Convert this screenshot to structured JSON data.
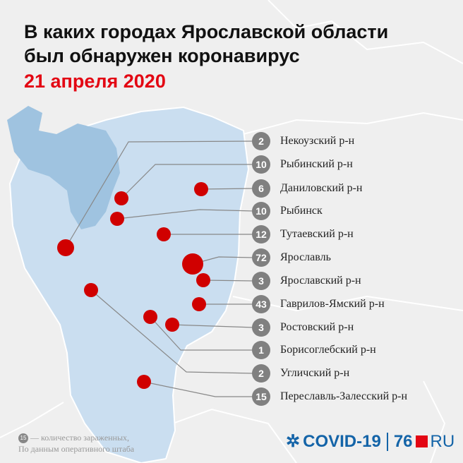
{
  "title": {
    "line1": "В каких городах Ярославской области",
    "line2": "был обнаружен коронавирус",
    "date": "21 апреля 2020"
  },
  "colors": {
    "accent": "#e30613",
    "region": "#cadef0",
    "water": "#9fc3e0",
    "badge": "#808080",
    "background": "#efefef",
    "brand": "#1464a8"
  },
  "districts": [
    {
      "name": "Некоузский р-н",
      "count": "2"
    },
    {
      "name": "Рыбинский р-н",
      "count": "10"
    },
    {
      "name": "Даниловский р-н",
      "count": "6"
    },
    {
      "name": "Рыбинск",
      "count": "10"
    },
    {
      "name": "Тутаевский р-н",
      "count": "12"
    },
    {
      "name": "Ярославль",
      "count": "72"
    },
    {
      "name": "Ярославский р-н",
      "count": "3"
    },
    {
      "name": "Гаврилов-Ямский р-н",
      "count": "43"
    },
    {
      "name": "Ростовский р-н",
      "count": "3"
    },
    {
      "name": "Борисоглебский р-н",
      "count": "1"
    },
    {
      "name": "Угличский р-н",
      "count": "2"
    },
    {
      "name": "Переславль-Залесский р-н",
      "count": "15"
    }
  ],
  "legend": {
    "badge": "15",
    "line1": "— количество зараженных,",
    "line2": "По данным оперативного штаба"
  },
  "logo": {
    "covid": "COVID-19",
    "num": "76",
    "ru": "RU"
  }
}
